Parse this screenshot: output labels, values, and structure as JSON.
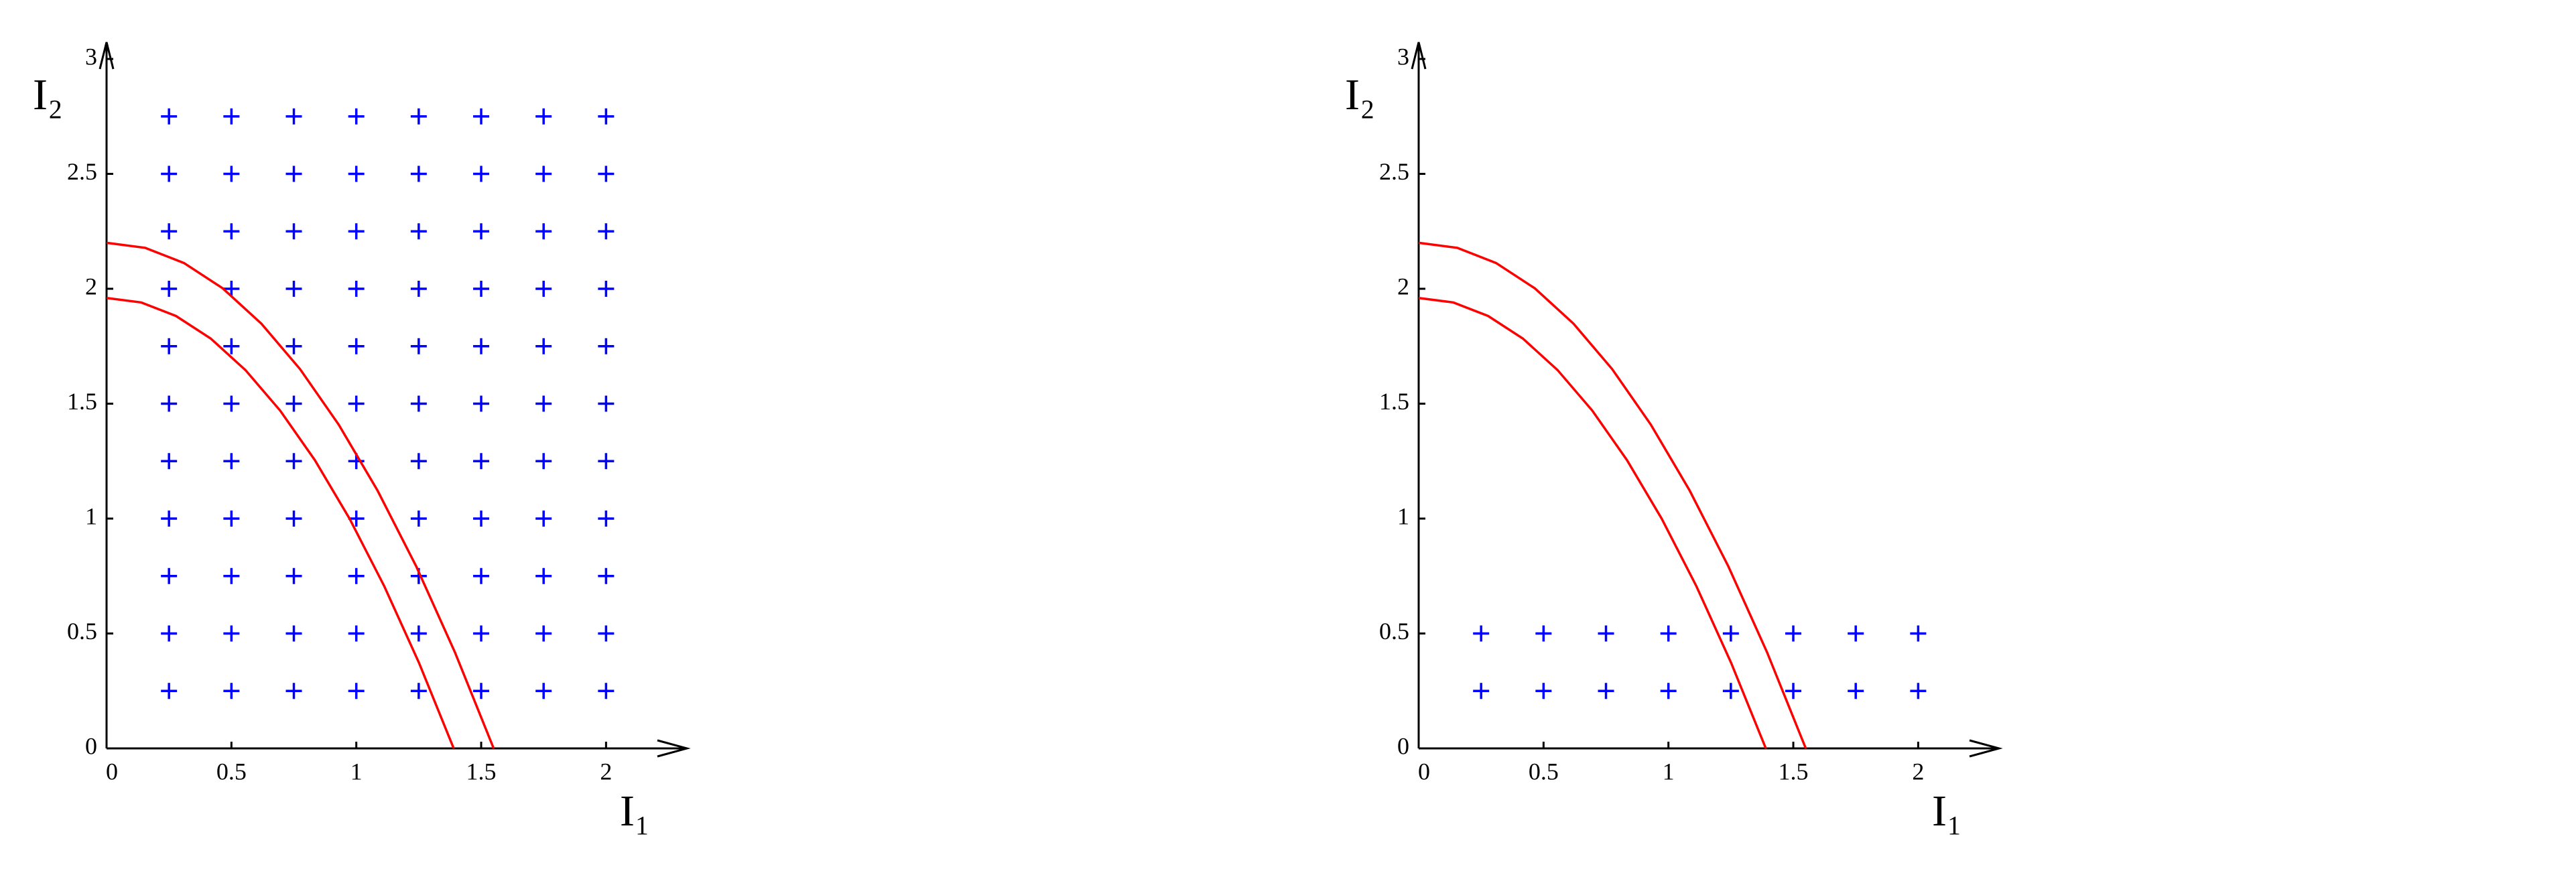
{
  "chart_data": [
    {
      "type": "scatter",
      "xlabel": "I₁",
      "ylabel": "I₂",
      "xlim": [
        0,
        2.27
      ],
      "ylim": [
        0,
        3
      ],
      "xticks": [
        0,
        0.5,
        1,
        1.5,
        2
      ],
      "yticks": [
        0,
        0.5,
        1,
        1.5,
        2,
        2.5,
        3
      ],
      "series": [
        {
          "color": "#0000ff",
          "marker": "plus",
          "x": [
            0.25,
            0.5,
            0.75,
            1,
            1.25,
            1.5,
            1.75,
            2,
            0.25,
            0.5,
            0.75,
            1,
            1.25,
            1.5,
            1.75,
            2,
            0.25,
            0.5,
            0.75,
            1,
            1.25,
            1.5,
            1.75,
            2,
            0.25,
            0.5,
            0.75,
            1,
            1.25,
            1.5,
            1.75,
            2,
            0.25,
            0.5,
            0.75,
            1,
            1.25,
            1.5,
            1.75,
            2,
            0.25,
            0.5,
            0.75,
            1,
            1.25,
            1.5,
            1.75,
            2,
            0.25,
            0.5,
            0.75,
            1,
            1.25,
            1.5,
            1.75,
            2,
            0.25,
            0.5,
            0.75,
            1,
            1.25,
            1.5,
            1.75,
            2,
            0.25,
            0.5,
            0.75,
            1,
            1.25,
            1.5,
            1.75,
            2,
            0.25,
            0.5,
            0.75,
            1,
            1.25,
            1.5,
            1.75,
            2,
            0.25,
            0.5,
            0.75,
            1,
            1.25,
            1.5,
            1.75,
            2
          ],
          "y": [
            0.25,
            0.25,
            0.25,
            0.25,
            0.25,
            0.25,
            0.25,
            0.25,
            0.5,
            0.5,
            0.5,
            0.5,
            0.5,
            0.5,
            0.5,
            0.5,
            0.75,
            0.75,
            0.75,
            0.75,
            0.75,
            0.75,
            0.75,
            0.75,
            1,
            1,
            1,
            1,
            1,
            1,
            1,
            1,
            1.25,
            1.25,
            1.25,
            1.25,
            1.25,
            1.25,
            1.25,
            1.25,
            1.5,
            1.5,
            1.5,
            1.5,
            1.5,
            1.5,
            1.5,
            1.5,
            1.75,
            1.75,
            1.75,
            1.75,
            1.75,
            1.75,
            1.75,
            1.75,
            2,
            2,
            2,
            2,
            2,
            2,
            2,
            2,
            2.25,
            2.25,
            2.25,
            2.25,
            2.25,
            2.25,
            2.25,
            2.25,
            2.5,
            2.5,
            2.5,
            2.5,
            2.5,
            2.5,
            2.5,
            2.5,
            2.75,
            2.75,
            2.75,
            2.75,
            2.75,
            2.75,
            2.75,
            2.75
          ]
        },
        {
          "color": "#ff0000",
          "marker": "line",
          "x": [
            0,
            0.155,
            0.31,
            0.465,
            0.62,
            0.775,
            0.93,
            1.085,
            1.24,
            1.395,
            1.55
          ],
          "y": [
            2.2,
            2.178,
            2.112,
            2.002,
            1.848,
            1.65,
            1.408,
            1.122,
            0.792,
            0.418,
            0
          ]
        },
        {
          "color": "#ff0000",
          "marker": "line",
          "x": [
            0,
            0.139,
            0.278,
            0.417,
            0.556,
            0.695,
            0.834,
            0.973,
            1.112,
            1.251,
            1.39
          ],
          "y": [
            1.96,
            1.9404,
            1.8816,
            1.7836,
            1.6464,
            1.47,
            1.2544,
            0.9996,
            0.7056,
            0.3724,
            0
          ]
        }
      ]
    },
    {
      "type": "scatter",
      "xlabel": "I₁",
      "ylabel": "I₂",
      "xlim": [
        0,
        2.27
      ],
      "ylim": [
        0,
        3
      ],
      "xticks": [
        0,
        0.5,
        1,
        1.5,
        2
      ],
      "yticks": [
        0,
        0.5,
        1,
        1.5,
        2,
        2.5,
        3
      ],
      "series": [
        {
          "color": "#0000ff",
          "marker": "plus",
          "x": [
            0.25,
            0.5,
            0.75,
            1,
            1.25,
            1.5,
            1.75,
            2,
            0.25,
            0.5,
            0.75,
            1,
            1.25,
            1.5,
            1.75,
            2
          ],
          "y": [
            0.25,
            0.25,
            0.25,
            0.25,
            0.25,
            0.25,
            0.25,
            0.25,
            0.5,
            0.5,
            0.5,
            0.5,
            0.5,
            0.5,
            0.5,
            0.5
          ]
        },
        {
          "color": "#ff0000",
          "marker": "line",
          "x": [
            0,
            0.155,
            0.31,
            0.465,
            0.62,
            0.775,
            0.93,
            1.085,
            1.24,
            1.395,
            1.55
          ],
          "y": [
            2.2,
            2.178,
            2.112,
            2.002,
            1.848,
            1.65,
            1.408,
            1.122,
            0.792,
            0.418,
            0
          ]
        },
        {
          "color": "#ff0000",
          "marker": "line",
          "x": [
            0,
            0.139,
            0.278,
            0.417,
            0.556,
            0.695,
            0.834,
            0.973,
            1.112,
            1.251,
            1.39
          ],
          "y": [
            1.96,
            1.9404,
            1.8816,
            1.7836,
            1.6464,
            1.47,
            1.2544,
            0.9996,
            0.7056,
            0.3724,
            0
          ]
        }
      ]
    }
  ]
}
